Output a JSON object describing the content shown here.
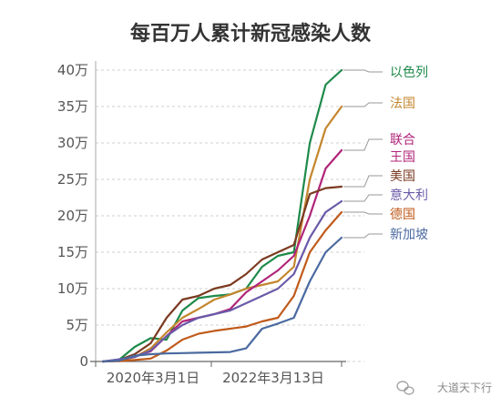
{
  "chart_data": {
    "type": "line",
    "title": "每百万人累计新冠感染人数",
    "xlabel": "",
    "ylabel": "",
    "x_ticks": [
      "2020年3月1日",
      "2022年3月13日"
    ],
    "y_ticks": [
      "0",
      "5万",
      "10万",
      "15万",
      "20万",
      "25万",
      "30万",
      "35万",
      "40万"
    ],
    "ylim": [
      0,
      400000
    ],
    "grid": true,
    "legend_position": "right-end-labels",
    "series": [
      {
        "name": "以色列",
        "color": "#1e8a4a",
        "values": [
          0,
          2000,
          20000,
          32000,
          30000,
          70000,
          87000,
          90000,
          92000,
          100000,
          130000,
          145000,
          150000,
          300000,
          380000,
          400000
        ]
      },
      {
        "name": "法国",
        "color": "#c4862e",
        "values": [
          0,
          1000,
          6000,
          18000,
          40000,
          60000,
          72000,
          85000,
          92000,
          100000,
          105000,
          110000,
          130000,
          250000,
          320000,
          350000
        ]
      },
      {
        "name": "联合\n王国",
        "color": "#b0257a",
        "values": [
          0,
          1000,
          7000,
          14000,
          35000,
          55000,
          60000,
          65000,
          72000,
          95000,
          110000,
          125000,
          145000,
          200000,
          265000,
          290000
        ]
      },
      {
        "name": "美国",
        "color": "#7a3a20",
        "values": [
          0,
          2000,
          10000,
          25000,
          60000,
          85000,
          90000,
          100000,
          105000,
          120000,
          140000,
          150000,
          160000,
          230000,
          238000,
          240000
        ]
      },
      {
        "name": "意大利",
        "color": "#6a5aa8",
        "values": [
          0,
          3000,
          6000,
          15000,
          35000,
          50000,
          60000,
          65000,
          70000,
          80000,
          90000,
          100000,
          120000,
          170000,
          205000,
          220000
        ]
      },
      {
        "name": "德国",
        "color": "#c05a1a",
        "values": [
          0,
          500,
          2000,
          4000,
          15000,
          30000,
          38000,
          42000,
          45000,
          48000,
          55000,
          60000,
          90000,
          150000,
          180000,
          205000
        ]
      },
      {
        "name": "新加坡",
        "color": "#4a6aa0",
        "values": [
          0,
          1000,
          8000,
          10000,
          11000,
          11500,
          12000,
          12500,
          13000,
          18000,
          45000,
          52000,
          60000,
          110000,
          150000,
          170000
        ]
      }
    ]
  },
  "watermark": "大道天下行"
}
